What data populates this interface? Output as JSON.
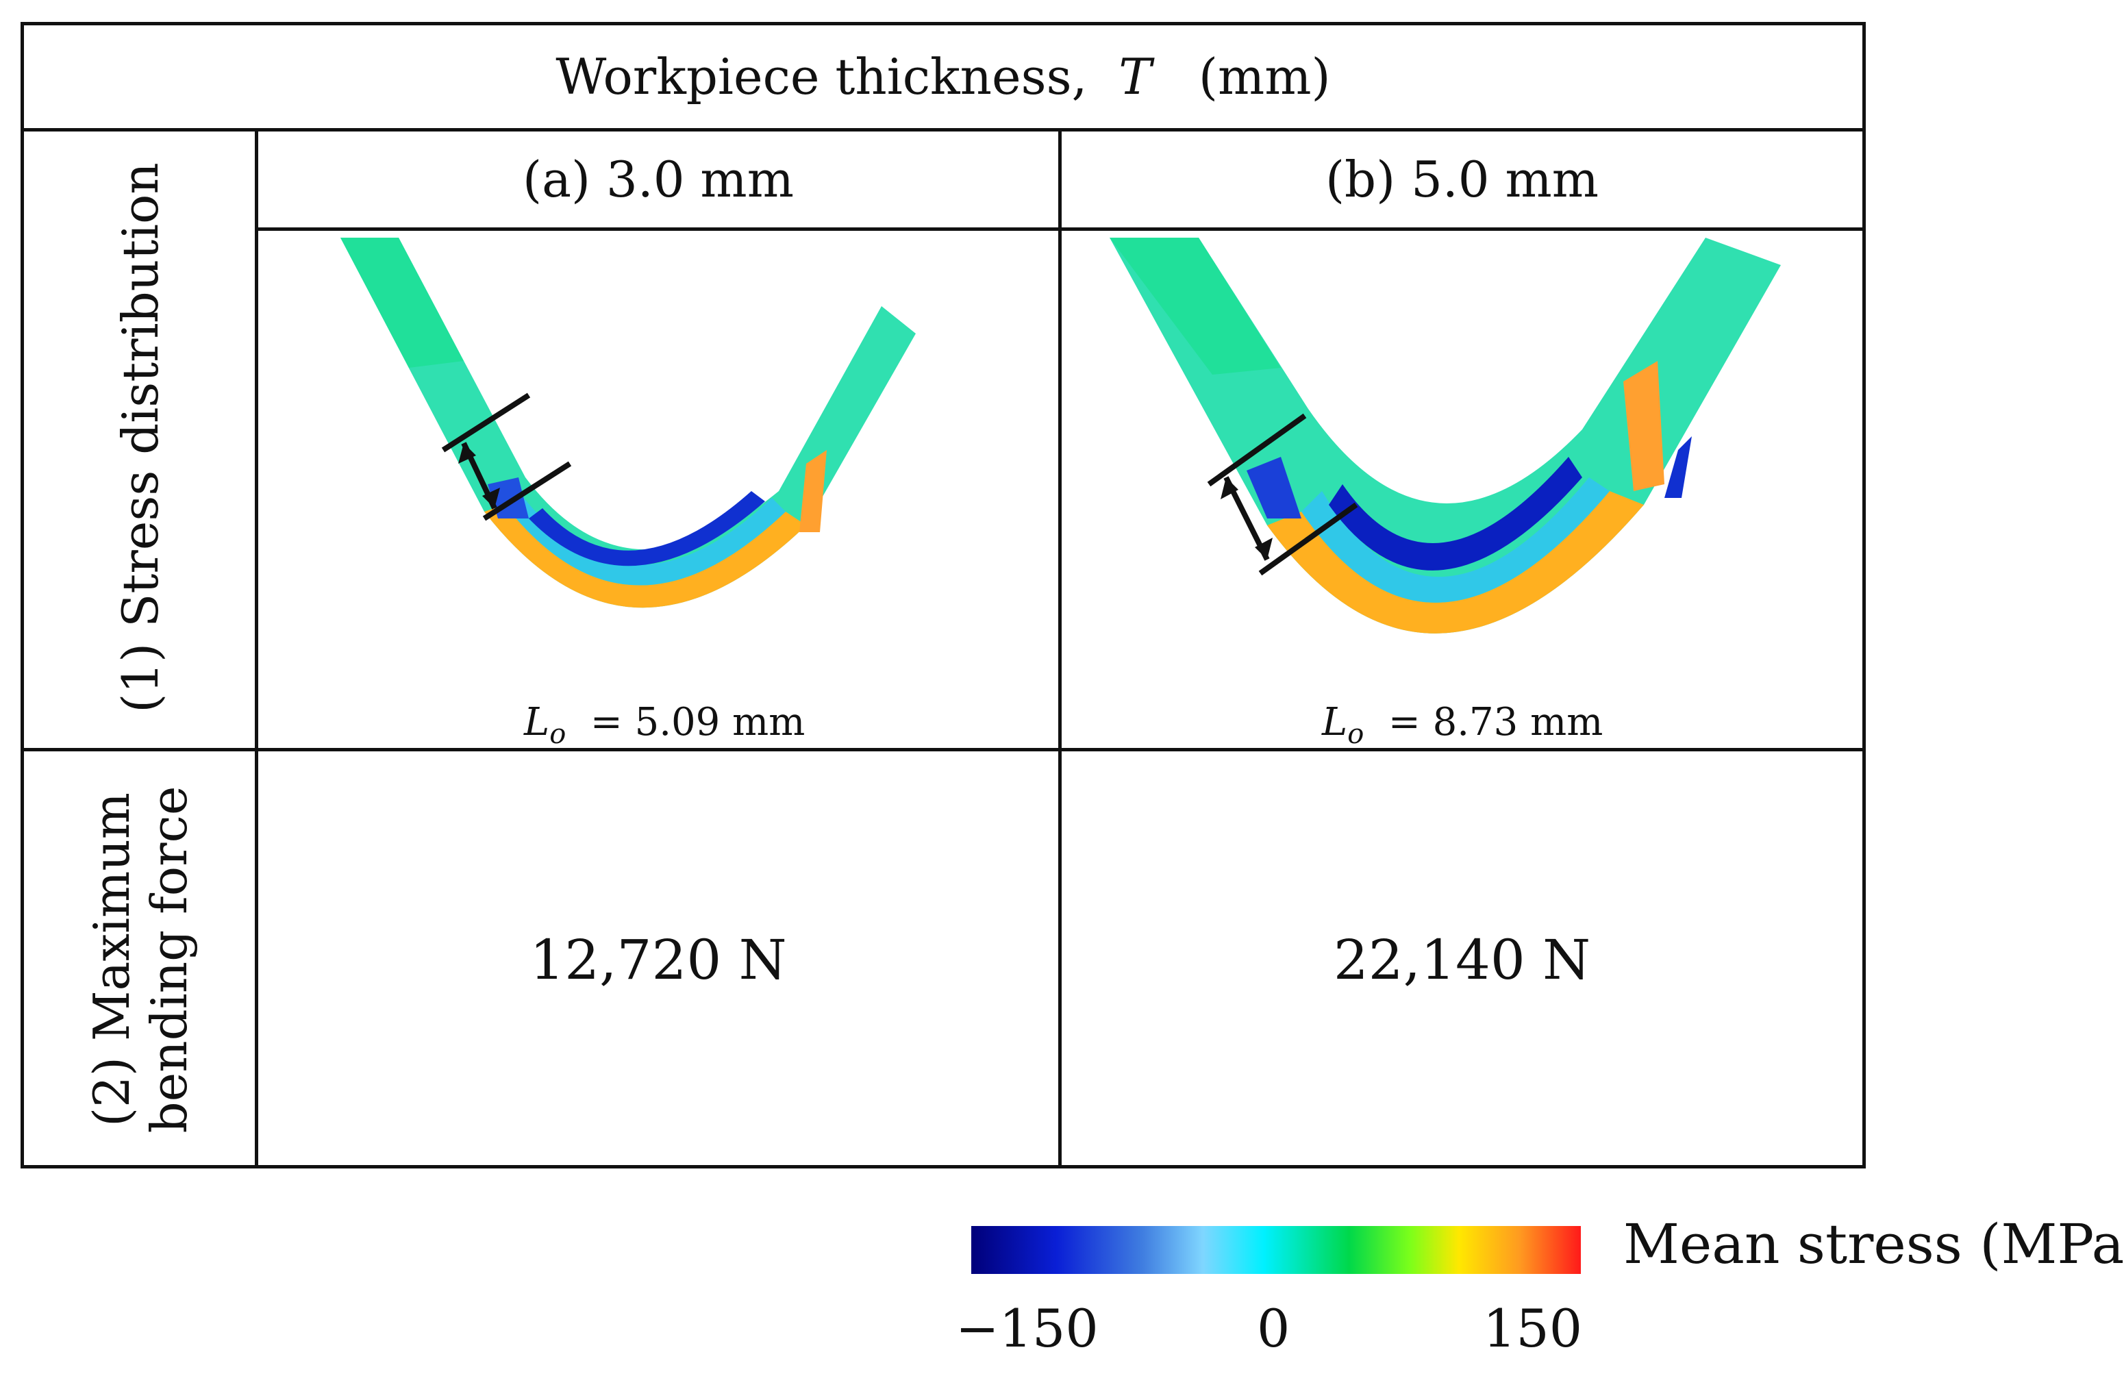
{
  "figure": {
    "title_prefix": "Workpiece thickness,",
    "title_symbol": "T",
    "title_unit": "(mm)",
    "row_labels": {
      "stress": "(1) Stress distribution",
      "force_line1": "(2) Maximum",
      "force_line2": "bending force"
    },
    "columns": [
      {
        "header": "(a) 3.0 mm",
        "lo_symbol": "L",
        "lo_sub": "o",
        "lo_value": "= 5.09 mm",
        "max_force": "12,720 N"
      },
      {
        "header": "(b) 5.0 mm",
        "lo_symbol": "L",
        "lo_sub": "o",
        "lo_value": "= 8.73 mm",
        "max_force": "22,140 N"
      }
    ]
  },
  "legend": {
    "title": "Mean stress  (MPa)",
    "ticks": [
      "−150",
      "0",
      "150"
    ],
    "colors": [
      "#00007a",
      "#0a1fd6",
      "#00f0ff",
      "#00d84a",
      "#ffe800",
      "#ff9a20",
      "#ff1a1a"
    ]
  }
}
